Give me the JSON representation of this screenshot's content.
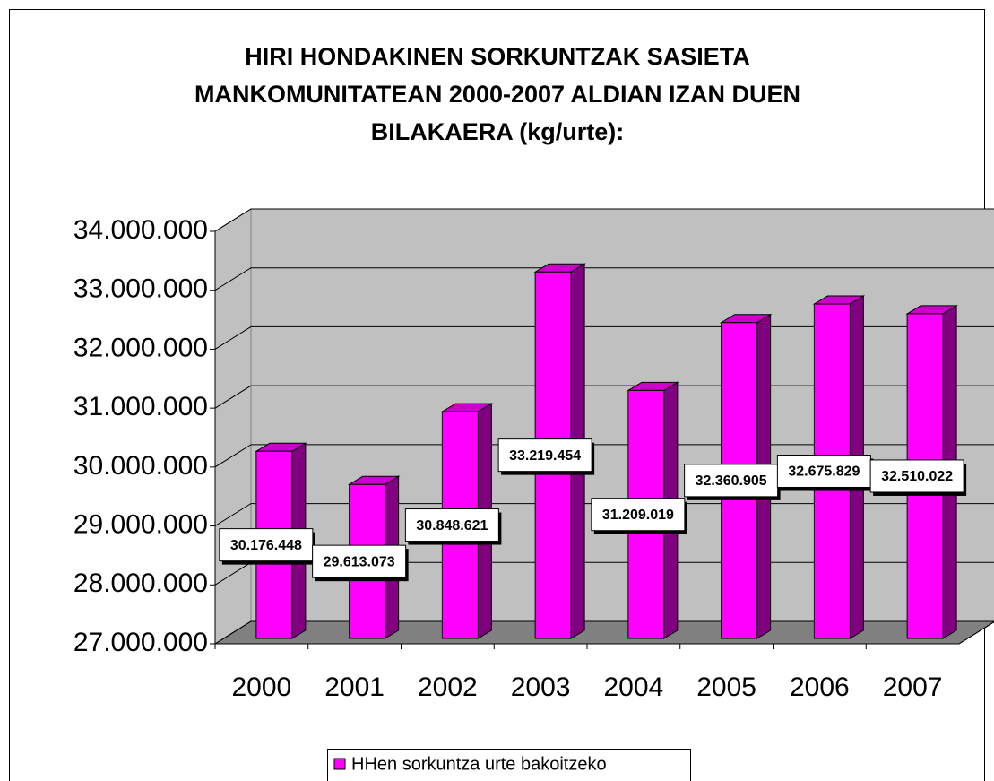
{
  "chart_data": {
    "type": "bar3d",
    "title": "HIRI HONDAKINEN SORKUNTZAK SASIETA MANKOMUNITATEAN 2000-2007 ALDIAN IZAN DUEN BILAKAERA (kg/urte):",
    "categories": [
      "2000",
      "2001",
      "2002",
      "2003",
      "2004",
      "2005",
      "2006",
      "2007"
    ],
    "series": [
      {
        "name": "HHen sorkuntza urte bakoitzeko",
        "color": "#ff00ff",
        "values": [
          30176448,
          29613073,
          30848621,
          33219454,
          31209019,
          32360905,
          32675829,
          32510022
        ],
        "value_labels": [
          "30.176.448",
          "29.613.073",
          "30.848.621",
          "33.219.454",
          "31.209.019",
          "32.360.905",
          "32.675.829",
          "32.510.022"
        ]
      }
    ],
    "ylim": [
      27000000,
      34000000
    ],
    "yticks": [
      {
        "value": 27000000,
        "label": "27.000.000"
      },
      {
        "value": 28000000,
        "label": "28.000.000"
      },
      {
        "value": 29000000,
        "label": "29.000.000"
      },
      {
        "value": 30000000,
        "label": "30.000.000"
      },
      {
        "value": 31000000,
        "label": "31.000.000"
      },
      {
        "value": 32000000,
        "label": "32.000.000"
      },
      {
        "value": 33000000,
        "label": "33.000.000"
      },
      {
        "value": 34000000,
        "label": "34.000.000"
      }
    ],
    "grid": true,
    "legend": "bottom"
  }
}
